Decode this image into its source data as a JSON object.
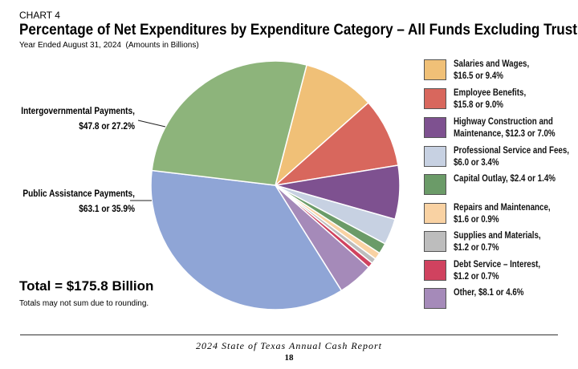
{
  "chart_data": {
    "type": "pie",
    "label": "CHART 4",
    "title": "Percentage of Net Expenditures by Expenditure Category – All Funds Excluding Trust",
    "subtitle": "Year Ended August 31, 2024  (Amounts in Billions)",
    "categories": [
      "Salaries and Wages,",
      "Employee Benefits,",
      "Highway Construction and Maintenance,",
      "Professional Service and Fees,",
      "Capital Outlay,",
      "Repairs and Maintenance,",
      "Supplies and Materials,",
      "Debt Service – Interest,",
      "Other,",
      "Public Assistance Payments,",
      "Intergovernmental Payments,"
    ],
    "values": [
      9.4,
      9.0,
      7.0,
      3.4,
      1.4,
      0.9,
      0.7,
      0.7,
      4.6,
      35.9,
      27.2
    ],
    "value_labels": [
      "$16.5 or 9.4%",
      "$15.8 or 9.0%",
      "$12.3 or 7.0%",
      "$6.0 or 3.4%",
      "$2.4 or 1.4%",
      "$1.6 or 0.9%",
      "$1.2 or 0.7%",
      "$1.2 or 0.7%",
      "$8.1 or 4.6%",
      "$63.1 or 35.9%",
      "$47.8 or 27.2%"
    ],
    "colors": [
      "#f0c077",
      "#d8675d",
      "#7e5190",
      "#c7d1e2",
      "#6b9b68",
      "#f9d2a3",
      "#bdbdbd",
      "#d0425f",
      "#a58ab9",
      "#8fa5d6",
      "#8db47b"
    ],
    "annotations": [
      "Total = $175.8 Billion",
      "Totals may not sum due to rounding."
    ]
  },
  "footer": {
    "title": "2024 State of Texas Annual Cash Report",
    "page": "18"
  }
}
